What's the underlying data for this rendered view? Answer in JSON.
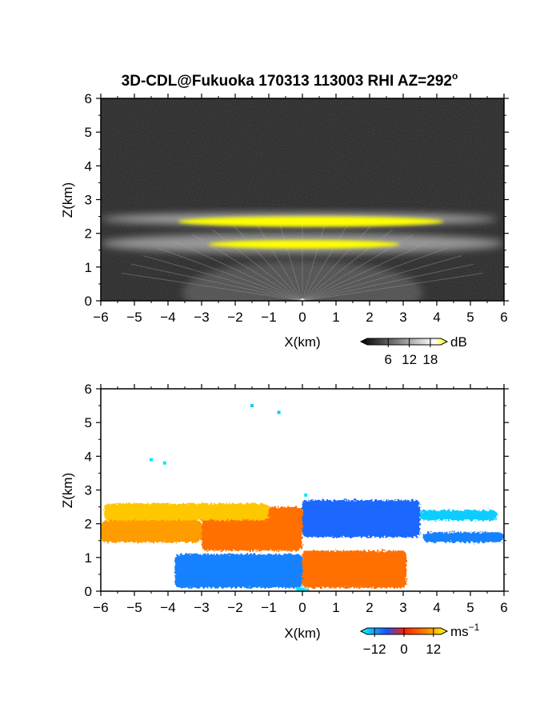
{
  "title": "3D-CDL@Fukuoka 170313 113003 RHI AZ=292",
  "title_superscript": "o",
  "chart_data": [
    {
      "type": "heatmap",
      "name": "backscatter-intensity",
      "xlabel": "X(km)",
      "ylabel": "Z(km)",
      "xlim": [
        -6,
        6
      ],
      "ylim": [
        0,
        6
      ],
      "xticks": [
        "-6",
        "-5",
        "-4",
        "-3",
        "-2",
        "-1",
        "0",
        "1",
        "2",
        "3",
        "4",
        "5",
        "6"
      ],
      "yticks": [
        "0",
        "1",
        "2",
        "3",
        "4",
        "5",
        "6"
      ],
      "grid": false,
      "colorbar": {
        "unit": "dB",
        "tick_labels": [
          "6",
          "12",
          "18"
        ],
        "tick_values": [
          6,
          12,
          18
        ],
        "range": [
          0,
          21
        ],
        "colors": [
          "#000000",
          "#ffffff",
          "#ffff00"
        ]
      },
      "features": [
        {
          "label": "upper layer",
          "x": [
            -6.0,
            5.8
          ],
          "z": [
            2.25,
            2.6
          ]
        },
        {
          "label": "lower layer",
          "x": [
            -6.0,
            6.0
          ],
          "z": [
            1.4,
            2.0
          ]
        },
        {
          "label": "strong upper",
          "x": [
            -3.7,
            4.2
          ],
          "z": [
            2.2,
            2.5
          ]
        },
        {
          "label": "strong lower",
          "x": [
            -2.8,
            2.9
          ],
          "z": [
            1.55,
            1.8
          ]
        },
        {
          "label": "near-field beams origin",
          "x": [
            0.0
          ],
          "z": [
            0.0
          ]
        }
      ]
    },
    {
      "type": "heatmap",
      "name": "radial-velocity",
      "xlabel": "X(km)",
      "ylabel": "Z(km)",
      "xlim": [
        -6,
        6
      ],
      "ylim": [
        0,
        6
      ],
      "xticks": [
        "-6",
        "-5",
        "-4",
        "-3",
        "-2",
        "-1",
        "0",
        "1",
        "2",
        "3",
        "4",
        "5",
        "6"
      ],
      "yticks": [
        "0",
        "1",
        "2",
        "3",
        "4",
        "5",
        "6"
      ],
      "grid": false,
      "colorbar": {
        "unit": "ms",
        "unit_superscript": "-1",
        "tick_labels": [
          "-12",
          "0",
          "12"
        ],
        "tick_values": [
          -12,
          0,
          12
        ],
        "range": [
          -15,
          15
        ],
        "colors": [
          "#00ffff",
          "#1f4fff",
          "#ff2000",
          "#ff8000",
          "#ffff00"
        ]
      },
      "regions": [
        {
          "x": [
            -6.0,
            -3.0
          ],
          "z": [
            1.45,
            2.1
          ],
          "velocity": 8
        },
        {
          "x": [
            -3.0,
            0.0
          ],
          "z": [
            1.2,
            2.5
          ],
          "velocity": 5
        },
        {
          "x": [
            -5.9,
            -1.0
          ],
          "z": [
            2.1,
            2.6
          ],
          "velocity": 11
        },
        {
          "x": [
            0.0,
            3.5
          ],
          "z": [
            1.6,
            2.7
          ],
          "velocity": -9
        },
        {
          "x": [
            3.5,
            5.8
          ],
          "z": [
            2.1,
            2.4
          ],
          "velocity": -13
        },
        {
          "x": [
            3.6,
            6.0
          ],
          "z": [
            1.45,
            1.75
          ],
          "velocity": -10
        },
        {
          "x": [
            0.0,
            3.1
          ],
          "z": [
            0.1,
            1.2
          ],
          "velocity": 5
        },
        {
          "x": [
            -3.8,
            0.0
          ],
          "z": [
            0.1,
            1.1
          ],
          "velocity": -10
        },
        {
          "x": [
            -0.2,
            0.2
          ],
          "z": [
            0.0,
            0.1
          ],
          "velocity": -14
        }
      ],
      "outliers": [
        {
          "x": -1.5,
          "z": 5.5,
          "velocity": -13
        },
        {
          "x": -0.7,
          "z": 5.3,
          "velocity": -13
        },
        {
          "x": -4.5,
          "z": 3.9,
          "velocity": -14
        },
        {
          "x": -4.1,
          "z": 3.8,
          "velocity": -14
        },
        {
          "x": 0.1,
          "z": 2.85,
          "velocity": -14
        }
      ]
    }
  ]
}
